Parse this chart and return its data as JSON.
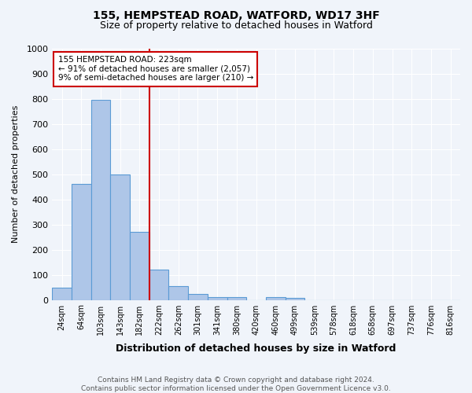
{
  "title": "155, HEMPSTEAD ROAD, WATFORD, WD17 3HF",
  "subtitle": "Size of property relative to detached houses in Watford",
  "xlabel": "Distribution of detached houses by size in Watford",
  "ylabel": "Number of detached properties",
  "footnote1": "Contains HM Land Registry data © Crown copyright and database right 2024.",
  "footnote2": "Contains public sector information licensed under the Open Government Licence v3.0.",
  "bin_labels": [
    "24sqm",
    "64sqm",
    "103sqm",
    "143sqm",
    "182sqm",
    "222sqm",
    "262sqm",
    "301sqm",
    "341sqm",
    "380sqm",
    "420sqm",
    "460sqm",
    "499sqm",
    "539sqm",
    "578sqm",
    "618sqm",
    "658sqm",
    "697sqm",
    "737sqm",
    "776sqm",
    "816sqm"
  ],
  "bar_values": [
    50,
    460,
    795,
    500,
    270,
    120,
    55,
    22,
    12,
    12,
    0,
    10,
    8,
    0,
    0,
    0,
    0,
    0,
    0,
    0,
    0
  ],
  "bar_color": "#aec6e8",
  "bar_edge_color": "#5b9bd5",
  "property_line_x": 5.0,
  "property_line_color": "#cc0000",
  "annotation_text": "155 HEMPSTEAD ROAD: 223sqm\n← 91% of detached houses are smaller (2,057)\n9% of semi-detached houses are larger (210) →",
  "annotation_box_color": "#ffffff",
  "annotation_box_edge": "#cc0000",
  "ylim": [
    0,
    1000
  ],
  "background_color": "#f0f4fa",
  "plot_bg_color": "#f0f4fa"
}
